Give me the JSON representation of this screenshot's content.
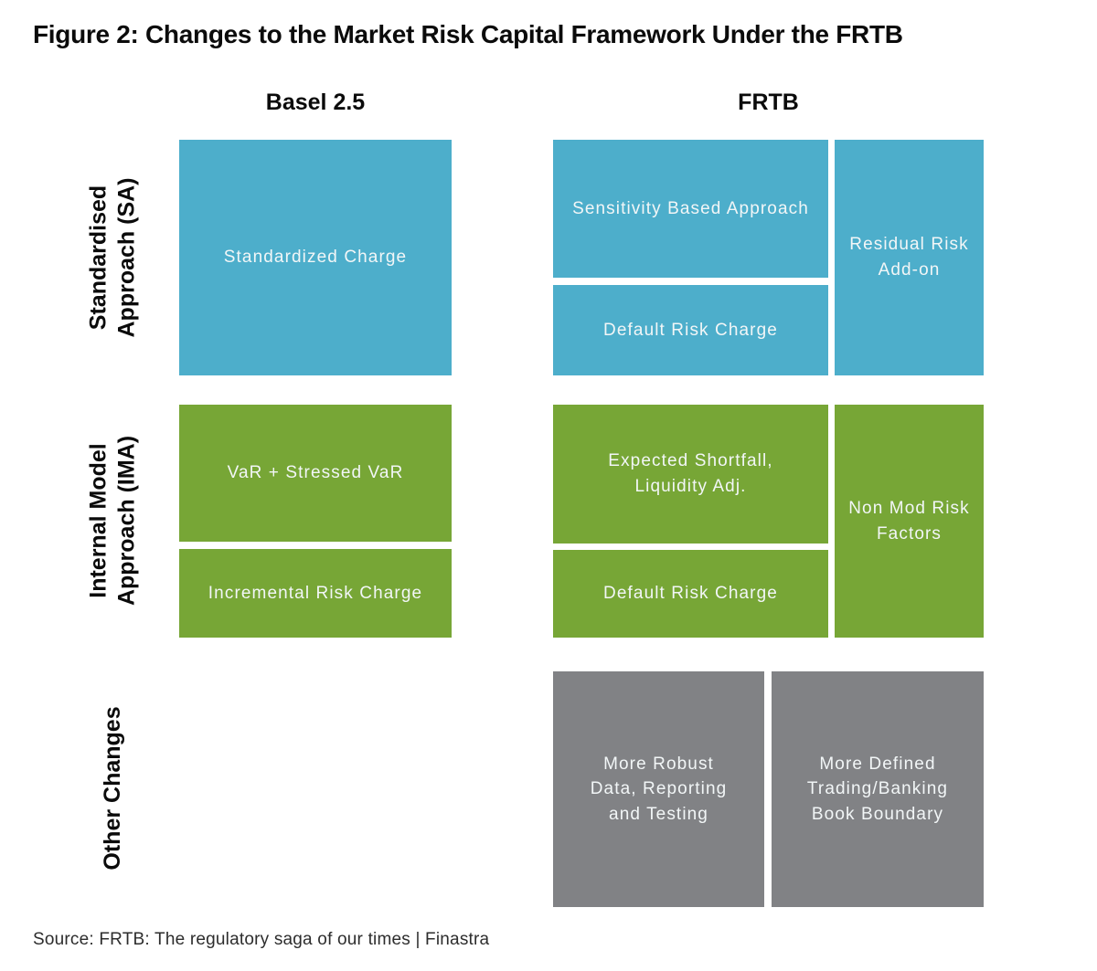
{
  "title": "Figure 2: Changes to the Market Risk Capital Framework Under the FRTB",
  "column_headers": {
    "basel": "Basel 2.5",
    "frtb": "FRTB"
  },
  "row_labels": {
    "sa": {
      "lines": [
        "Standardised",
        "Approach (SA)"
      ]
    },
    "ima": {
      "lines": [
        "Internal Model",
        "Approach (IMA)"
      ]
    },
    "other": {
      "lines": [
        "Other Changes"
      ]
    }
  },
  "boxes": {
    "sa_basel_standardized_charge": {
      "lines": [
        "Standardized Charge"
      ]
    },
    "sa_frtb_sensitivity_based": {
      "lines": [
        "Sensitivity Based Approach"
      ]
    },
    "sa_frtb_default_risk_charge": {
      "lines": [
        "Default Risk Charge"
      ]
    },
    "sa_frtb_residual_risk_addon": {
      "lines": [
        "Residual Risk",
        "Add-on"
      ]
    },
    "ima_basel_var_stressed_var": {
      "lines": [
        "VaR + Stressed VaR"
      ]
    },
    "ima_basel_incremental_risk_charge": {
      "lines": [
        "Incremental Risk Charge"
      ]
    },
    "ima_frtb_expected_shortfall": {
      "lines": [
        "Expected Shortfall,",
        "Liquidity Adj."
      ]
    },
    "ima_frtb_default_risk_charge": {
      "lines": [
        "Default Risk Charge"
      ]
    },
    "ima_frtb_non_mod_risk_factors": {
      "lines": [
        "Non Mod Risk",
        "Factors"
      ]
    },
    "other_frtb_robust_data": {
      "lines": [
        "More Robust",
        "Data, Reporting",
        "and Testing"
      ]
    },
    "other_frtb_book_boundary": {
      "lines": [
        "More Defined",
        "Trading/Banking",
        "Book Boundary"
      ]
    }
  },
  "colors": {
    "sa_blue": "#4DAECB",
    "ima_green": "#77A636",
    "other_gray": "#818285",
    "box_text": "#F2F6F7"
  },
  "source": "Source: FRTB: The regulatory saga of our times | Finastra"
}
